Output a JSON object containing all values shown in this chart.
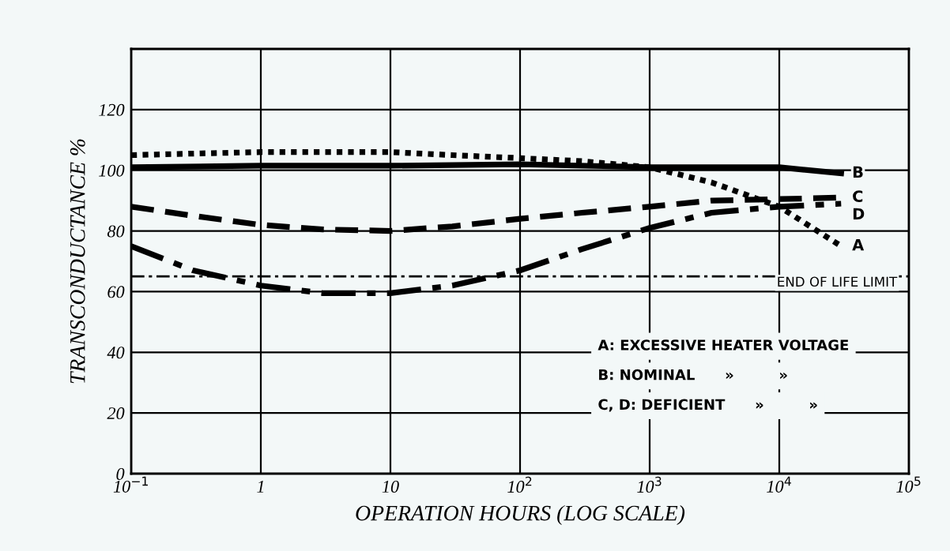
{
  "chart_data": {
    "type": "line",
    "xlabel": "OPERATION HOURS (LOG SCALE)",
    "ylabel": "TRANSCONDUCTANCE %",
    "log": "x",
    "grid": true,
    "legend": false,
    "xlim": [
      0.1,
      100000
    ],
    "xticks": [
      {
        "value": 0.1,
        "label": "10$^{−1}$"
      },
      1,
      10,
      {
        "value": 100,
        "label": "10$^{2}$"
      },
      {
        "value": 1000,
        "label": "10$^{3}$"
      },
      {
        "value": 10000,
        "label": "10$^{4}$"
      },
      {
        "value": 100000,
        "label": "10$^{5}$"
      }
    ],
    "ylim": [
      0,
      140
    ],
    "yticks": [
      0,
      20,
      40,
      60,
      80,
      100,
      120,
      {
        "value": 140,
        "label": null
      }
    ],
    "series": [
      {
        "name": "A",
        "color": "#000000",
        "line_style": "dotted",
        "x": [
          0.1,
          0.3,
          1,
          3,
          10,
          30,
          100,
          300,
          1000,
          3000,
          10000,
          30000
        ],
        "values": [
          105,
          105.5,
          106,
          106,
          106,
          105,
          104,
          103,
          101,
          96,
          88,
          75
        ]
      },
      {
        "name": "B",
        "color": "#000000",
        "line_style": "solid",
        "x": [
          0.1,
          1,
          10,
          100,
          1000,
          10000,
          30000
        ],
        "values": [
          101,
          101.5,
          101.5,
          102,
          101,
          101,
          99
        ]
      },
      {
        "name": "C",
        "color": "#000000",
        "line_style": "dashed",
        "x": [
          0.1,
          0.3,
          1,
          3,
          10,
          30,
          100,
          300,
          1000,
          3000,
          10000,
          30000
        ],
        "values": [
          88,
          85,
          82,
          80.5,
          80,
          81.5,
          84,
          86,
          88,
          90,
          90.5,
          91
        ]
      },
      {
        "name": "D",
        "color": "#000000",
        "line_style": "dashdot",
        "x": [
          0.1,
          0.3,
          1,
          3,
          10,
          30,
          100,
          300,
          1000,
          3000,
          10000,
          30000
        ],
        "values": [
          75,
          67,
          62,
          59.5,
          59.5,
          62,
          67,
          74,
          81,
          86,
          88,
          89
        ]
      }
    ],
    "ref_lines": [
      {
        "axis": "y",
        "value": 65,
        "label": "END OF LIFE LIMIT",
        "line_style": "dashdot",
        "color": "#000000"
      }
    ],
    "annotations": [
      "A: EXCESSIVE HEATER VOLTAGE",
      "B: NOMINAL      »         »",
      "C, D: DEFICIENT      »         »"
    ]
  }
}
